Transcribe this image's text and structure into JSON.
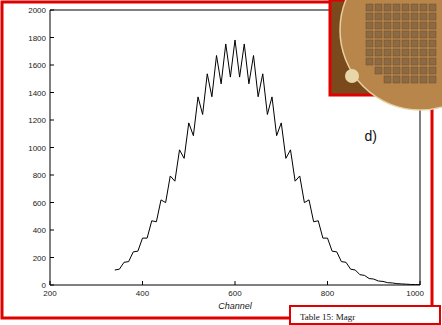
{
  "chart_data": {
    "type": "line",
    "x_label": "Channel",
    "annotation": "d)",
    "x": [
      340,
      350,
      360,
      370,
      380,
      390,
      400,
      410,
      420,
      430,
      440,
      450,
      460,
      470,
      480,
      490,
      500,
      510,
      520,
      530,
      540,
      550,
      560,
      570,
      580,
      590,
      600,
      610,
      620,
      630,
      640,
      650,
      660,
      670,
      680,
      690,
      700,
      710,
      720,
      730,
      740,
      750,
      760,
      770,
      780,
      790,
      800,
      810,
      820,
      830,
      840,
      850,
      860,
      870,
      880,
      890,
      900,
      910,
      920,
      930,
      940,
      950,
      960,
      970,
      980,
      990,
      1000
    ],
    "values": [
      109,
      115,
      165,
      170,
      241,
      246,
      341,
      341,
      467,
      460,
      619,
      599,
      793,
      755,
      983,
      921,
      1179,
      1086,
      1368,
      1240,
      1536,
      1369,
      1669,
      1463,
      1753,
      1512,
      1782,
      1512,
      1753,
      1463,
      1669,
      1369,
      1536,
      1240,
      1368,
      1086,
      1179,
      921,
      983,
      755,
      793,
      599,
      619,
      460,
      467,
      341,
      341,
      246,
      241,
      170,
      165,
      115,
      109,
      75,
      70,
      47,
      43,
      29,
      26,
      17,
      15,
      10,
      8,
      6,
      4,
      3,
      2
    ],
    "color": "#000000",
    "xlim": [
      200,
      1000
    ],
    "xticks": [
      200,
      400,
      600,
      800,
      1000
    ],
    "ylim": [
      0,
      2000
    ],
    "yticks": [
      0,
      200,
      400,
      600,
      800,
      1000,
      1200,
      1400,
      1600,
      1800,
      2000
    ],
    "grid": false
  },
  "caption": "Table 15: Magr"
}
